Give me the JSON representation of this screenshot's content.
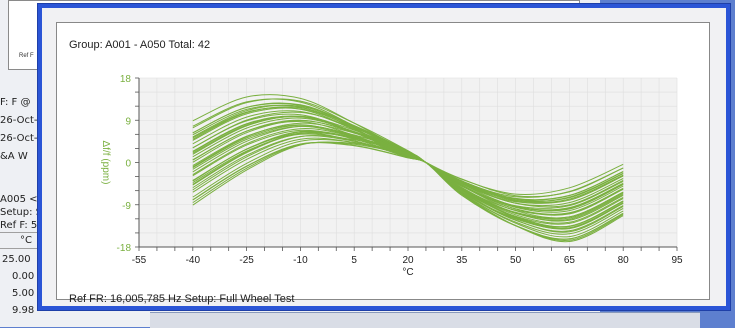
{
  "background": {
    "top_ref": "Ref F",
    "side_texts": [
      "F: F @",
      "26-Oct-",
      "26-Oct-",
      "&A W",
      "A005 <",
      "Setup: S",
      "Ref F: 5",
      "°C"
    ],
    "table_values": [
      "25.00",
      "0.00",
      "5.00",
      "9.98"
    ]
  },
  "popup": {
    "group_label": "Group: A001 - A050 Total: 42",
    "footer_label": "Ref FR: 16,005,785 Hz   Setup: Full Wheel Test"
  },
  "colors": {
    "window_border": "#2b55d6",
    "series": "#7ab040",
    "axis_label": "#7ab040",
    "plot_bg": "#f2f2f2"
  },
  "chart_data": {
    "type": "line",
    "xlabel": "°C",
    "ylabel": "Δf/f (ppm)",
    "xlim": [
      -55,
      95
    ],
    "ylim": [
      -18,
      18
    ],
    "xticks": [
      -55,
      -40,
      -25,
      -10,
      5,
      20,
      35,
      50,
      65,
      80,
      95
    ],
    "yticks": [
      18,
      9,
      0,
      -9,
      -18
    ],
    "grid": true,
    "x": [
      -40,
      -25,
      -10,
      5,
      20,
      25,
      35,
      50,
      65,
      80
    ],
    "series_count": 42,
    "series_envelope": {
      "upper": [
        9.5,
        14.5,
        14,
        8.5,
        2,
        0,
        -3.5,
        -6.5,
        -5,
        0
      ],
      "lower": [
        -10,
        -2.5,
        3,
        3.5,
        1.5,
        0,
        -7,
        -14,
        -17.5,
        -12
      ]
    }
  }
}
